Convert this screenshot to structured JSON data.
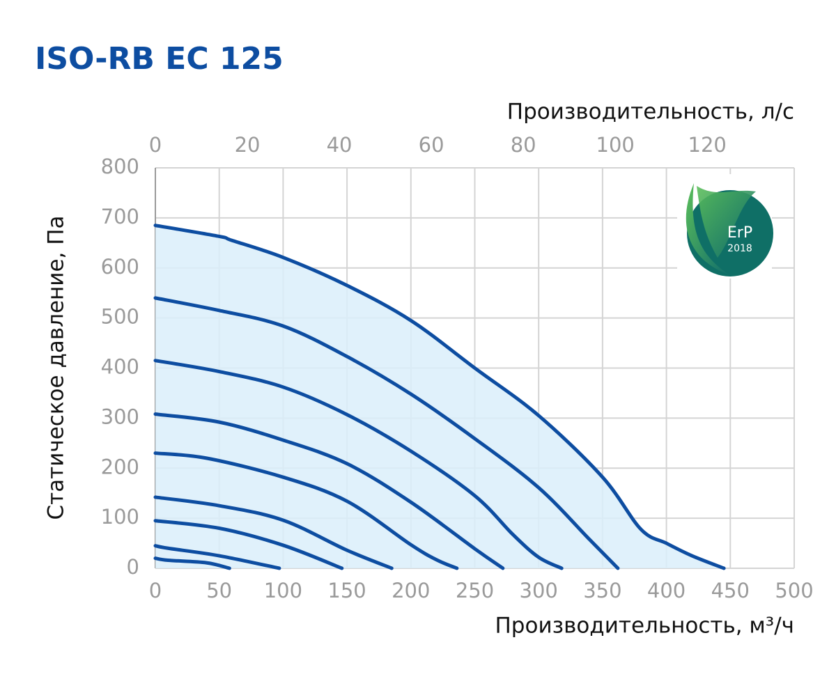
{
  "chart_data": {
    "type": "line",
    "title": "ISO-RB EC 125",
    "xlabel": "Производительность, м³/ч",
    "x2label": "Производительность, л/с",
    "ylabel": "Статическое давление, Па",
    "xlim": [
      0,
      500
    ],
    "xticks": [
      0,
      50,
      100,
      150,
      200,
      250,
      300,
      350,
      400,
      450,
      500
    ],
    "x2lim": [
      0,
      138.9
    ],
    "x2ticks": [
      0,
      20,
      40,
      60,
      80,
      100,
      120
    ],
    "ylim": [
      0,
      800
    ],
    "yticks": [
      0,
      100,
      200,
      300,
      400,
      500,
      600,
      700,
      800
    ],
    "grid": true,
    "line_color": "#0d4da1",
    "fill_color": "#daeefa",
    "badge_label": "ErP",
    "badge_year": "2018",
    "series": [
      {
        "x": [
          0,
          50,
          60,
          100,
          150,
          200,
          250,
          300,
          350,
          380,
          400,
          420,
          445
        ],
        "values": [
          685,
          663,
          655,
          621,
          565,
          495,
          400,
          305,
          182,
          78,
          50,
          25,
          0
        ]
      },
      {
        "x": [
          0,
          50,
          100,
          150,
          200,
          250,
          300,
          340,
          362
        ],
        "values": [
          540,
          515,
          484,
          423,
          348,
          259,
          161,
          57,
          0
        ]
      },
      {
        "x": [
          0,
          50,
          100,
          150,
          200,
          250,
          280,
          300,
          318
        ],
        "values": [
          415,
          393,
          362,
          307,
          234,
          145,
          67,
          22,
          0
        ]
      },
      {
        "x": [
          0,
          50,
          100,
          150,
          200,
          250,
          272
        ],
        "values": [
          308,
          292,
          256,
          209,
          132,
          39,
          0
        ]
      },
      {
        "x": [
          0,
          40,
          100,
          150,
          200,
          220,
          236
        ],
        "values": [
          230,
          220,
          182,
          134,
          47,
          17,
          0
        ]
      },
      {
        "x": [
          0,
          50,
          100,
          150,
          185
        ],
        "values": [
          142,
          125,
          96,
          36,
          0
        ]
      },
      {
        "x": [
          0,
          50,
          100,
          146
        ],
        "values": [
          95,
          80,
          46,
          0
        ]
      },
      {
        "x": [
          0,
          10,
          50,
          97
        ],
        "values": [
          45,
          40,
          25,
          0
        ]
      },
      {
        "x": [
          0,
          10,
          40,
          58
        ],
        "values": [
          20,
          16,
          11,
          0
        ]
      }
    ]
  }
}
